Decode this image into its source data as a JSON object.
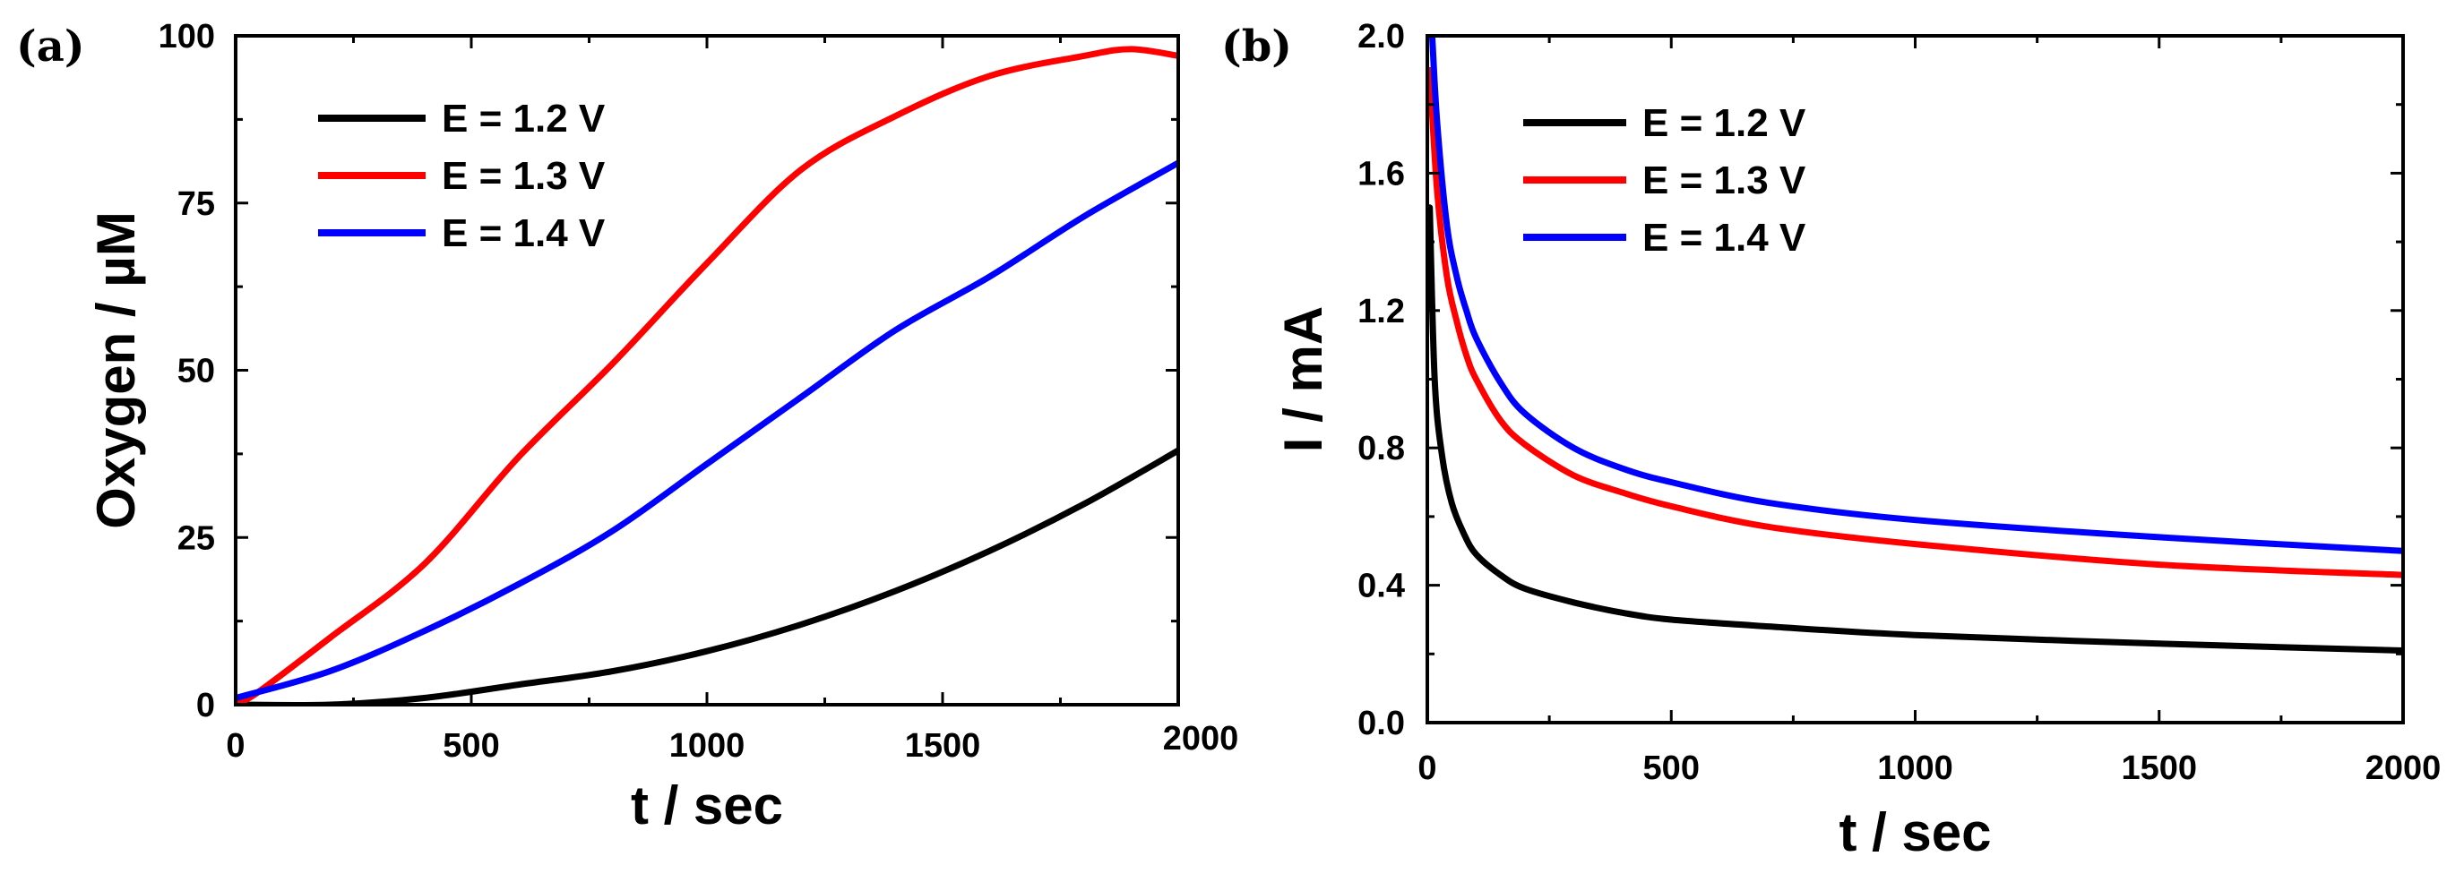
{
  "chart_data": [
    {
      "panel_label": "(a)",
      "type": "line",
      "title": "",
      "xlabel": "t / sec",
      "ylabel": "Oxygen / µM",
      "xlim": [
        0,
        2000
      ],
      "ylim": [
        0,
        100
      ],
      "xticks": [
        0,
        500,
        1000,
        1500,
        2000
      ],
      "yticks": [
        0,
        25,
        50,
        75,
        100
      ],
      "xtick_labels": [
        "0",
        "500",
        "1000",
        "1500",
        "2000"
      ],
      "ytick_labels": [
        "0",
        "25",
        "50",
        "75",
        "100"
      ],
      "grid": false,
      "legend_position": "top-left",
      "series": [
        {
          "name": "E = 1.2 V",
          "color": "#000000",
          "x": [
            0,
            200,
            400,
            600,
            800,
            1000,
            1200,
            1400,
            1600,
            1800,
            2000
          ],
          "y": [
            0,
            0,
            1,
            3,
            5,
            8,
            12,
            17,
            23,
            30,
            38
          ]
        },
        {
          "name": "E = 1.3 V",
          "color": "#ff0000",
          "x": [
            0,
            50,
            200,
            400,
            600,
            800,
            1000,
            1200,
            1400,
            1600,
            1800,
            1900,
            2000
          ],
          "y": [
            0,
            2,
            10,
            21,
            37,
            51,
            66,
            80,
            88,
            94,
            97,
            98,
            97
          ]
        },
        {
          "name": "E = 1.4 V",
          "color": "#0000ff",
          "x": [
            0,
            200,
            400,
            600,
            800,
            1000,
            1200,
            1400,
            1600,
            1800,
            2000
          ],
          "y": [
            1,
            5,
            11,
            18,
            26,
            36,
            46,
            56,
            64,
            73,
            81
          ]
        }
      ]
    },
    {
      "panel_label": "(b)",
      "type": "line",
      "title": "",
      "xlabel": "t / sec",
      "ylabel": "I / mA",
      "xlim": [
        0,
        2000
      ],
      "ylim": [
        0,
        2.0
      ],
      "xticks": [
        0,
        500,
        1000,
        1500,
        2000
      ],
      "yticks": [
        0,
        0.4,
        0.8,
        1.2,
        1.6,
        2.0
      ],
      "xtick_labels": [
        "0",
        "500",
        "1000",
        "1500",
        "2000"
      ],
      "ytick_labels": [
        "0.0",
        "0.4",
        "0.8",
        "1.2",
        "1.6",
        "2.0"
      ],
      "grid": false,
      "legend_position": "top-right",
      "series": [
        {
          "name": "E = 1.2 V",
          "color": "#000000",
          "x": [
            5,
            15,
            30,
            50,
            75,
            100,
            150,
            200,
            300,
            400,
            500,
            700,
            1000,
            1500,
            2000
          ],
          "y": [
            1.5,
            1.0,
            0.78,
            0.64,
            0.55,
            0.49,
            0.43,
            0.39,
            0.35,
            0.32,
            0.3,
            0.28,
            0.255,
            0.23,
            0.21
          ]
        },
        {
          "name": "E = 1.3 V",
          "color": "#ff0000",
          "x": [
            5,
            20,
            40,
            60,
            80,
            100,
            150,
            200,
            300,
            400,
            500,
            700,
            1000,
            1500,
            2000
          ],
          "y": [
            1.9,
            1.55,
            1.3,
            1.17,
            1.07,
            1.0,
            0.88,
            0.81,
            0.72,
            0.67,
            0.63,
            0.57,
            0.52,
            0.46,
            0.43
          ]
        },
        {
          "name": "E = 1.4 V",
          "color": "#0000ff",
          "x": [
            10,
            20,
            40,
            60,
            80,
            100,
            150,
            200,
            300,
            400,
            500,
            700,
            1000,
            1500,
            2000
          ],
          "y": [
            2.0,
            1.75,
            1.45,
            1.3,
            1.2,
            1.12,
            0.99,
            0.9,
            0.8,
            0.74,
            0.7,
            0.64,
            0.59,
            0.54,
            0.5
          ]
        }
      ]
    }
  ]
}
